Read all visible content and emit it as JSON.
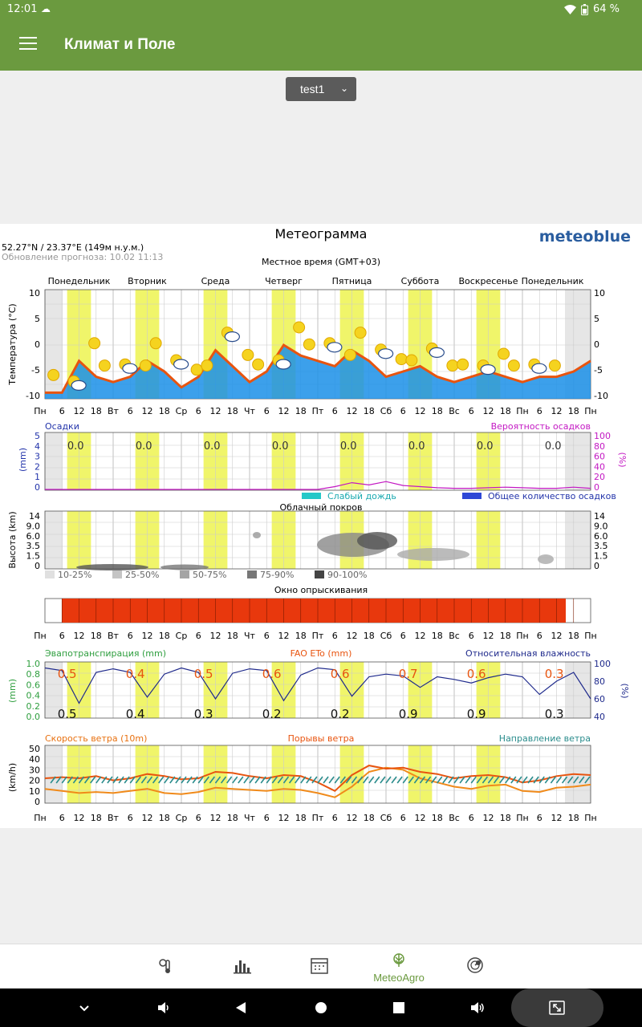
{
  "status": {
    "time": "12:01",
    "battery": "64 %"
  },
  "appbar": {
    "title": "Климат и Поле"
  },
  "selector": {
    "value": "test1"
  },
  "meteogram": {
    "title": "Метеограмма",
    "brand": "meteoblue",
    "coords": "52.27°N / 23.37°E (149м н.у.м.)",
    "updated": "Обновление прогноза: 10.02 11:13",
    "localtime": "Местное время (GMT+03)",
    "days": [
      "Понедельник",
      "Вторник",
      "Среда",
      "Четверг",
      "Пятница",
      "Суббота",
      "Воскресенье",
      "Понедельник"
    ],
    "time_axis": [
      "Пн",
      "6",
      "12",
      "18",
      "Вт",
      "6",
      "12",
      "18",
      "Ср",
      "6",
      "12",
      "18",
      "Чт",
      "6",
      "12",
      "18",
      "Пт",
      "6",
      "12",
      "18",
      "Сб",
      "6",
      "12",
      "18",
      "Вс",
      "6",
      "12",
      "18",
      "Пн",
      "6",
      "12",
      "18",
      "Пн"
    ],
    "temp_ylabel": "Температура (°C)",
    "temp_ticks": [
      "10",
      "5",
      "0",
      "-5",
      "-10"
    ],
    "precip": {
      "ylabel": "Осадки",
      "unit": "(mm)",
      "prob_label": "Вероятность осадков",
      "prob_unit": "(%)",
      "left_ticks": [
        "5",
        "4",
        "3",
        "2",
        "1",
        "0"
      ],
      "right_ticks": [
        "100",
        "80",
        "60",
        "40",
        "20",
        "0"
      ],
      "daily": [
        "0.0",
        "0.0",
        "0.0",
        "0.0",
        "0.0",
        "0.0",
        "0.0",
        "0.0"
      ],
      "legend_light": "Слабый дождь",
      "legend_total": "Общее количество осадков"
    },
    "cloud": {
      "title": "Облачный покров",
      "ylabel": "Высота (km)",
      "ticks": [
        "14",
        "9.0",
        "6.0",
        "3.5",
        "1.5",
        "0"
      ],
      "legend": [
        "10-25%",
        "25-50%",
        "50-75%",
        "75-90%",
        "90-100%"
      ]
    },
    "spray": {
      "title": "Окно опрыскивания"
    },
    "evap": {
      "label_evapo": "Эвапотранспирация (mm)",
      "label_fao": "FAO ETo (mm)",
      "label_rh": "Относительная влажность",
      "unit": "(mm)",
      "rh_unit": "(%)",
      "left_ticks": [
        "1.0",
        "0.8",
        "0.6",
        "0.4",
        "0.2",
        "0.0"
      ],
      "right_ticks": [
        "100",
        "80",
        "60",
        "40"
      ],
      "fao": [
        "0.5",
        "0.4",
        "0.5",
        "0.6",
        "0.6",
        "0.7",
        "0.6",
        "0.3"
      ],
      "et": [
        "0.5",
        "0.4",
        "0.3",
        "0.2",
        "0.2",
        "0.9",
        "0.9",
        "0.3"
      ]
    },
    "wind": {
      "label_speed": "Скорость ветра (10m)",
      "label_gust": "Порывы ветра",
      "label_dir": "Направление ветра",
      "unit": "(km/h)",
      "ticks": [
        "50",
        "40",
        "30",
        "20",
        "10",
        "0"
      ]
    }
  },
  "nav": {
    "meteoagro": "MeteoAgro"
  },
  "colors": {
    "appbar": "#6b9a3f",
    "accent_orange": "#e8540f",
    "spray_red": "#e8380d",
    "humidity": "#1f2a8c",
    "precip_prob": "#c318c3"
  },
  "chart_data": [
    {
      "type": "area",
      "title": "Метеограмма",
      "ylabel": "Температура (°C)",
      "ylim": [
        -10,
        10
      ],
      "x": [
        "Пн",
        "6",
        "12",
        "18",
        "Вт",
        "6",
        "12",
        "18",
        "Ср",
        "6",
        "12",
        "18",
        "Чт",
        "6",
        "12",
        "18",
        "Пт",
        "6",
        "12",
        "18",
        "Сб",
        "6",
        "12",
        "18",
        "Вс",
        "6",
        "12",
        "18",
        "Пн",
        "6",
        "12",
        "18",
        "Пн"
      ],
      "series": [
        {
          "name": "",
          "values": [
            -9,
            -9,
            -3,
            -6,
            -7,
            -6,
            -3,
            -5,
            -8,
            -6,
            -1,
            -4,
            -7,
            -5,
            0,
            -2,
            -3,
            -4,
            -1,
            -3,
            -6,
            -5,
            -4,
            -6,
            -7,
            -6,
            -5,
            -6,
            -7,
            -6,
            -6,
            -5,
            -3
          ]
        }
      ]
    },
    {
      "type": "line",
      "ylabel": "Вероятность осадков",
      "ylim": [
        0,
        100
      ],
      "series": [
        {
          "name": "Вероятность осадков",
          "values": [
            0,
            0,
            0,
            0,
            0,
            0,
            0,
            0,
            0,
            0,
            0,
            0,
            0,
            0,
            0,
            0,
            0,
            5,
            12,
            8,
            14,
            7,
            5,
            3,
            2,
            2,
            3,
            4,
            3,
            2,
            2,
            4,
            2
          ]
        }
      ]
    },
    {
      "type": "line",
      "ylabel": "Относительная влажность",
      "ylim": [
        40,
        100
      ],
      "series": [
        {
          "name": "Относительная влажность",
          "values": [
            95,
            92,
            55,
            90,
            94,
            90,
            62,
            88,
            95,
            90,
            60,
            89,
            94,
            92,
            58,
            87,
            95,
            93,
            63,
            85,
            88,
            86,
            73,
            85,
            82,
            78,
            84,
            88,
            85,
            65,
            80,
            90,
            60
          ]
        }
      ]
    },
    {
      "type": "line",
      "ylabel": "(km/h)",
      "ylim": [
        0,
        50
      ],
      "series": [
        {
          "name": "Скорость ветра (10m)",
          "values": [
            12,
            10,
            8,
            9,
            8,
            10,
            12,
            8,
            7,
            9,
            13,
            12,
            11,
            10,
            12,
            11,
            8,
            4,
            14,
            28,
            32,
            30,
            22,
            18,
            14,
            12,
            15,
            16,
            10,
            9,
            13,
            14,
            16
          ]
        },
        {
          "name": "Порывы ветра",
          "values": [
            22,
            23,
            22,
            24,
            20,
            22,
            26,
            24,
            21,
            22,
            28,
            27,
            24,
            22,
            25,
            24,
            18,
            10,
            25,
            34,
            31,
            32,
            28,
            26,
            22,
            24,
            25,
            23,
            18,
            20,
            24,
            26,
            25
          ]
        }
      ]
    }
  ]
}
